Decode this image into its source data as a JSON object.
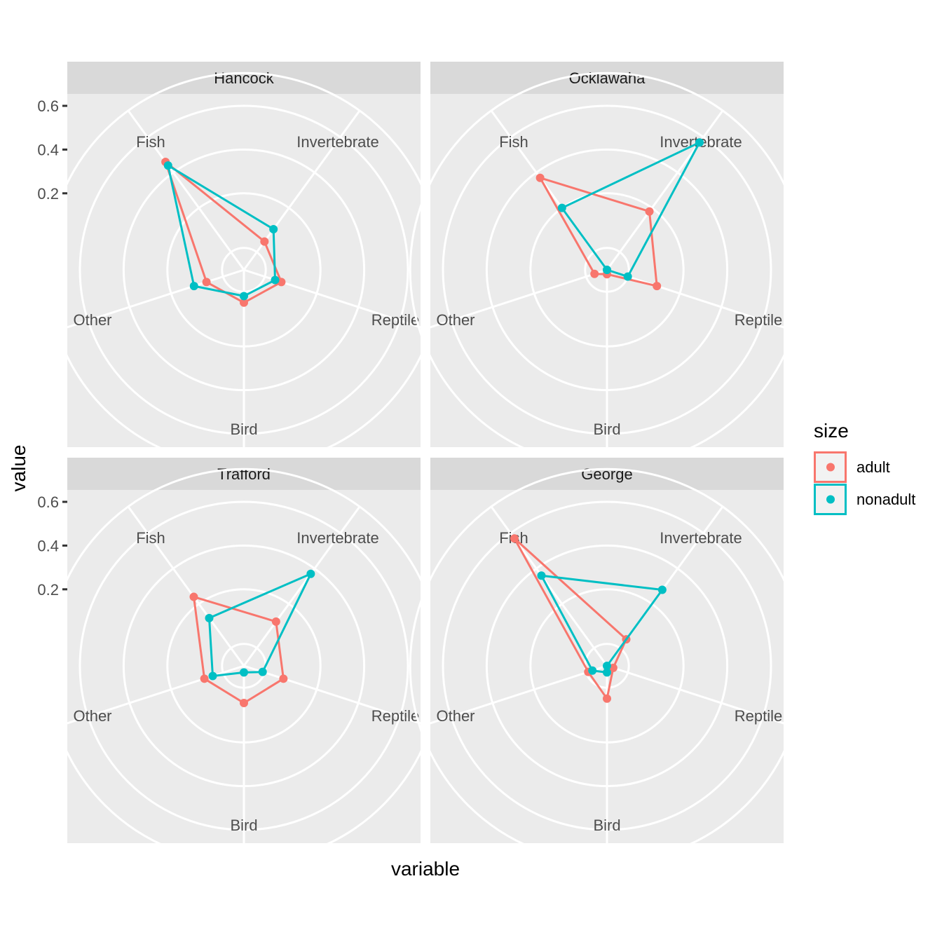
{
  "chart_data": {
    "type": "radar",
    "xlabel": "variable",
    "ylabel": "value",
    "categories": [
      "Fish",
      "Invertebrate",
      "Reptile",
      "Bird",
      "Other"
    ],
    "r_ticks": [
      0.2,
      0.4,
      0.6
    ],
    "r_tick_labels": [
      "0.2",
      "0.4",
      "0.6"
    ],
    "rlim": [
      -0.15,
      0.6
    ],
    "grid": true,
    "legend": {
      "title": "size",
      "placement": "right",
      "entries": [
        {
          "name": "adult",
          "color": "#F8766D"
        },
        {
          "name": "nonadult",
          "color": "#00BFC4"
        }
      ]
    },
    "panels": [
      {
        "name": "Hancock",
        "series": [
          {
            "name": "adult",
            "values": [
              0.46,
              0.01,
              0.03,
              0.0,
              0.03
            ]
          },
          {
            "name": "nonadult",
            "values": [
              0.44,
              0.08,
              0.0,
              -0.03,
              0.09
            ]
          }
        ]
      },
      {
        "name": "Ocklawaha",
        "series": [
          {
            "name": "adult",
            "values": [
              0.37,
              0.18,
              0.09,
              -0.13,
              -0.09
            ]
          },
          {
            "name": "nonadult",
            "values": [
              0.2,
              0.57,
              -0.05,
              -0.15,
              -0.15
            ]
          }
        ]
      },
      {
        "name": "Trafford",
        "series": [
          {
            "name": "adult",
            "values": [
              0.24,
              0.1,
              0.04,
              0.02,
              0.04
            ]
          },
          {
            "name": "nonadult",
            "values": [
              0.12,
              0.37,
              -0.06,
              -0.12,
              0.0
            ]
          }
        ]
      },
      {
        "name": "George",
        "series": [
          {
            "name": "adult",
            "values": [
              0.57,
              0.0,
              -0.12,
              0.0,
              -0.06
            ]
          },
          {
            "name": "nonadult",
            "values": [
              0.36,
              0.28,
              -0.15,
              -0.12,
              -0.08
            ]
          }
        ]
      }
    ]
  }
}
